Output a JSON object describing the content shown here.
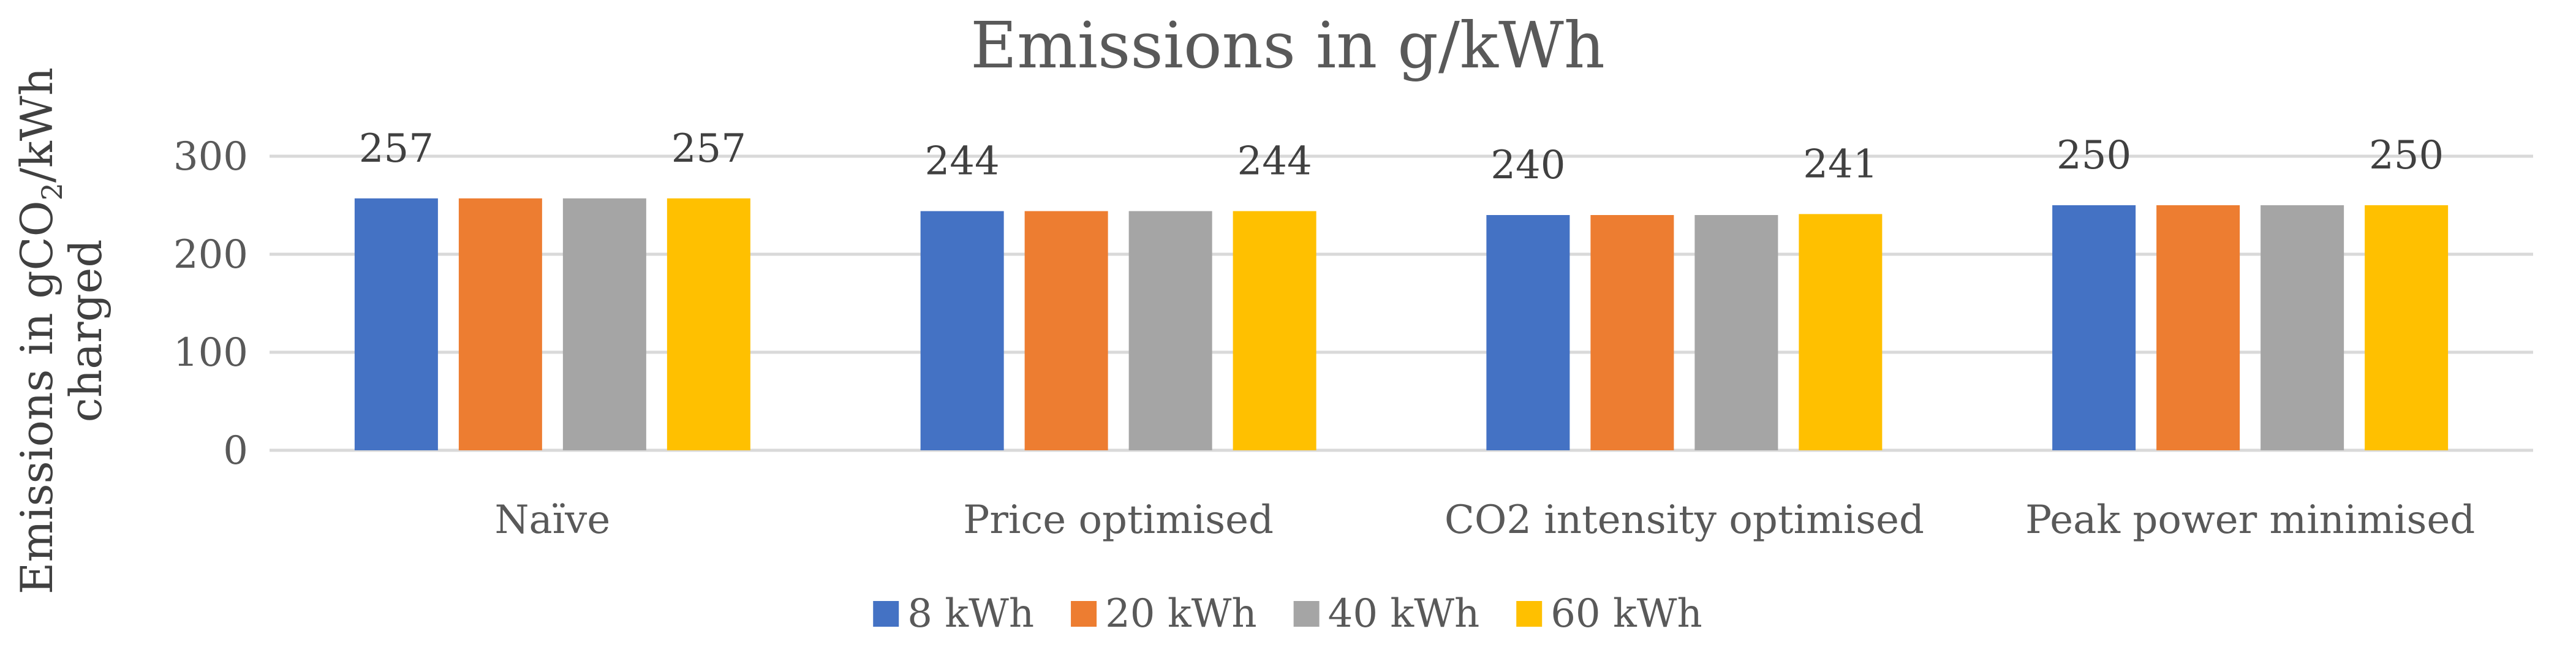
{
  "chart_data": {
    "type": "bar",
    "title": "Emissions in g/kWh",
    "ylabel_line1": "Emissions in gCO",
    "ylabel_sub": "2",
    "ylabel_line1_end": "/kWh",
    "ylabel_line2": "charged",
    "xlabel": "",
    "ylim": [
      0,
      300
    ],
    "yticks": [
      0,
      100,
      200,
      300
    ],
    "grid": true,
    "legend_position": "bottom",
    "categories": [
      "Naïve",
      "Price optimised",
      "CO2 intensity optimised",
      "Peak power minimised"
    ],
    "series": [
      {
        "name": "8  kWh",
        "color": "#4472C4",
        "values": [
          257,
          244,
          240,
          250
        ]
      },
      {
        "name": "20  kWh",
        "color": "#ED7D31",
        "values": [
          257,
          244,
          240,
          250
        ]
      },
      {
        "name": "40  kWh",
        "color": "#A5A5A5",
        "values": [
          257,
          244,
          240,
          250
        ]
      },
      {
        "name": "60  kWh",
        "color": "#FFC000",
        "values": [
          257,
          244,
          241,
          250
        ]
      }
    ],
    "data_labels": [
      {
        "category_index": 0,
        "series_index": 0,
        "text": "257"
      },
      {
        "category_index": 0,
        "series_index": 3,
        "text": "257"
      },
      {
        "category_index": 1,
        "series_index": 0,
        "text": "244"
      },
      {
        "category_index": 1,
        "series_index": 3,
        "text": "244"
      },
      {
        "category_index": 2,
        "series_index": 0,
        "text": "240"
      },
      {
        "category_index": 2,
        "series_index": 3,
        "text": "241"
      },
      {
        "category_index": 3,
        "series_index": 0,
        "text": "250"
      },
      {
        "category_index": 3,
        "series_index": 3,
        "text": "250"
      }
    ]
  }
}
